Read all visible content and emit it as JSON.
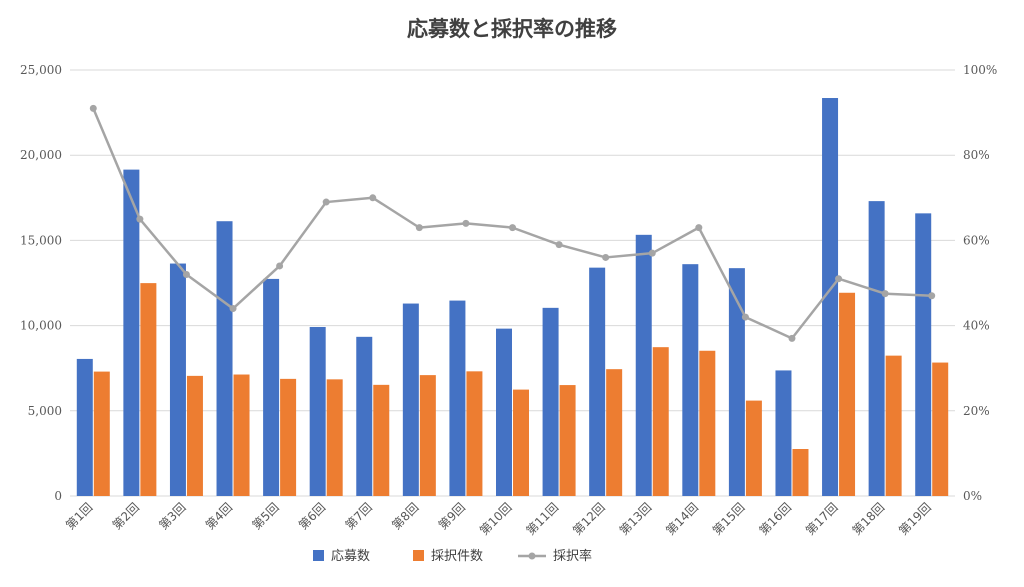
{
  "chart_data": {
    "type": "bar",
    "title": "応募数と採択率の推移",
    "categories": [
      "第1回",
      "第2回",
      "第3回",
      "第4回",
      "第5回",
      "第6回",
      "第7回",
      "第8回",
      "第9回",
      "第10回",
      "第11回",
      "第12回",
      "第13回",
      "第14回",
      "第15回",
      "第16回",
      "第17回",
      "第18回",
      "第19回"
    ],
    "series": [
      {
        "name": "応募数",
        "type": "bar",
        "axis": "left",
        "color": "#4472c4",
        "values": [
          8044,
          19154,
          13642,
          16126,
          12740,
          9919,
          9341,
          11294,
          11468,
          9822,
          11042,
          13401,
          15327,
          13605,
          13371,
          7369,
          23356,
          17305,
          16587
        ]
      },
      {
        "name": "採択件数",
        "type": "bar",
        "axis": "left",
        "color": "#ed7d31",
        "values": [
          7301,
          12493,
          7050,
          7129,
          6874,
          6846,
          6523,
          7094,
          7316,
          6244,
          6510,
          7443,
          8734,
          8523,
          5599,
          2758,
          11927,
          8237,
          7831
        ]
      },
      {
        "name": "採択率",
        "type": "line",
        "axis": "right",
        "color": "#a5a5a5",
        "values": [
          0.91,
          0.65,
          0.52,
          0.44,
          0.54,
          0.69,
          0.7,
          0.63,
          0.64,
          0.63,
          0.59,
          0.56,
          0.57,
          0.63,
          0.42,
          0.37,
          0.51,
          0.475,
          0.47
        ]
      }
    ],
    "left_axis": {
      "ylim": [
        0,
        25000
      ],
      "ticks": [
        "0",
        "5,000",
        "10,000",
        "15,000",
        "20,000",
        "25,000"
      ]
    },
    "right_axis": {
      "ylim": [
        0,
        1
      ],
      "ticks": [
        "0%",
        "20%",
        "40%",
        "60%",
        "80%",
        "100%"
      ]
    },
    "grid": true,
    "legend_position": "bottom"
  }
}
